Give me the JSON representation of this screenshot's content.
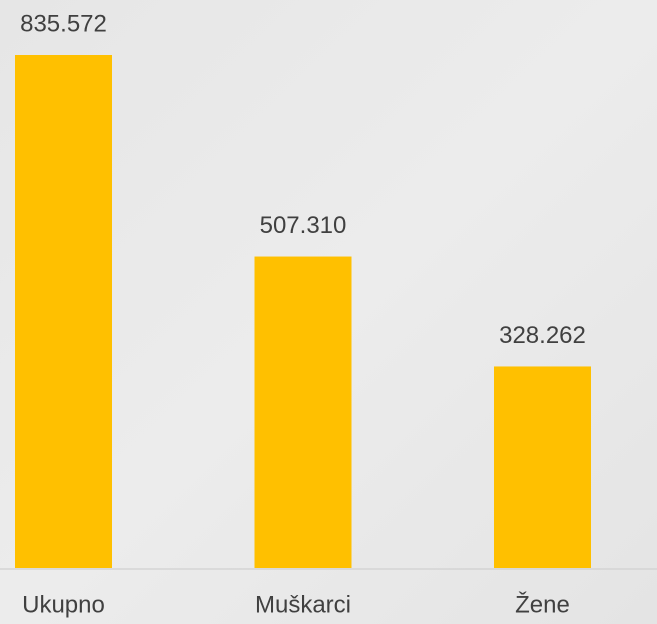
{
  "chart_data": {
    "type": "bar",
    "categories": [
      "Ukupno",
      "Muškarci",
      "Žene"
    ],
    "values": [
      835572,
      507310,
      328262
    ],
    "value_labels": [
      "835.572",
      "507.310",
      "328.262"
    ],
    "color": "#ffc000"
  }
}
